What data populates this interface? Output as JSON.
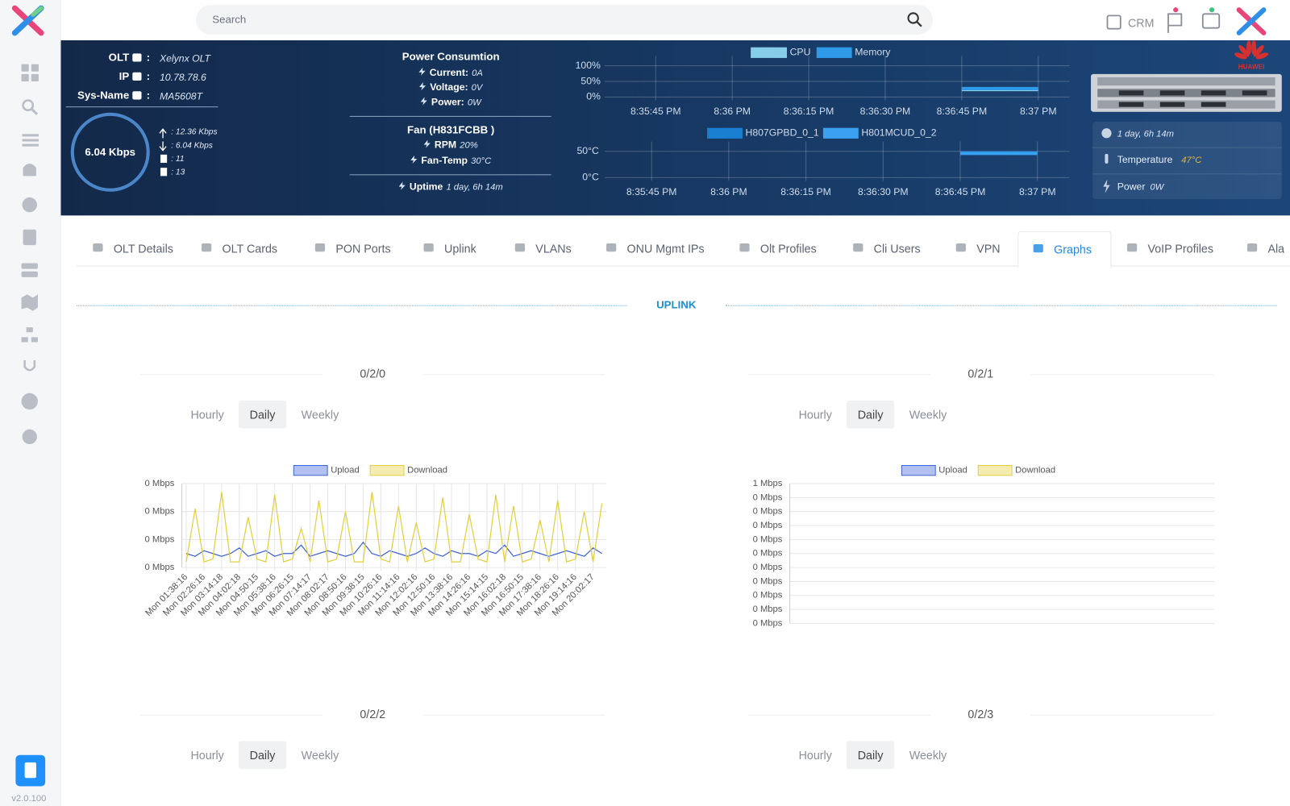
{
  "topbar": {
    "search_placeholder": "Search",
    "crm": "CRM"
  },
  "olt": {
    "rows": [
      {
        "label": "OLT",
        "value": "Xelynx OLT"
      },
      {
        "label": "IP",
        "value": "10.78.78.6"
      },
      {
        "label": "Sys-Name",
        "value": "MA5608T"
      }
    ],
    "separator": ":",
    "speed": "6.04 Kbps",
    "stats": [
      ": 12.36 Kbps",
      ": 6.04 Kbps",
      ": 11",
      ": 13"
    ]
  },
  "power": {
    "title": "Power Consumtion",
    "rows": [
      {
        "label": "Current:",
        "value": "0A"
      },
      {
        "label": "Voltage:",
        "value": "0V"
      },
      {
        "label": "Power:",
        "value": "0W"
      }
    ]
  },
  "fan": {
    "title": "Fan (H831FCBB )",
    "rows": [
      {
        "label": "RPM",
        "value": "20%"
      },
      {
        "label": "Fan-Temp",
        "value": "30°C"
      }
    ]
  },
  "uptime": {
    "label": "Uptime",
    "value": "1 day, 6h 14m"
  },
  "device": {
    "brand": "HUAWEI",
    "uptime": "1 day, 6h 14m",
    "temperature_label": "Temperature",
    "temperature": "47°C",
    "power_label": "Power",
    "power": "0W"
  },
  "chart_data": [
    {
      "type": "line",
      "categories": [
        "8:35:45 PM",
        "8:36 PM",
        "8:36:15 PM",
        "8:36:30 PM",
        "8:36:45 PM",
        "8:37 PM"
      ],
      "series": [
        {
          "name": "CPU",
          "color": "#86cdea",
          "values": [
            null,
            null,
            null,
            null,
            24,
            24
          ]
        },
        {
          "name": "Memory",
          "color": "#2f9be8",
          "values": [
            null,
            null,
            null,
            null,
            27,
            27
          ]
        }
      ],
      "ylim": [
        0,
        100
      ],
      "yticks": [
        {
          "value": 0,
          "label": "0%"
        },
        {
          "value": 50,
          "label": "50%"
        },
        {
          "value": 100,
          "label": "100%"
        }
      ],
      "grid": true
    },
    {
      "type": "line",
      "categories": [
        "8:35:45 PM",
        "8:36 PM",
        "8:36:15 PM",
        "8:36:30 PM",
        "8:36:45 PM",
        "8:37 PM"
      ],
      "series": [
        {
          "name": "H807GPBD_0_1",
          "color": "#1a7fd0",
          "values": [
            null,
            null,
            null,
            null,
            47,
            47
          ]
        },
        {
          "name": "H801MCUD_0_2",
          "color": "#3aa0f0",
          "values": [
            null,
            null,
            null,
            null,
            46,
            46
          ]
        }
      ],
      "ylim": [
        0,
        50
      ],
      "yticks": [
        {
          "value": 0,
          "label": "0°C"
        },
        {
          "value": 50,
          "label": "50°C"
        }
      ],
      "grid": true
    },
    {
      "type": "line",
      "categories": [
        "Mon 01:38:16",
        null,
        "Mon 02:26:16",
        null,
        "Mon 03:14:18",
        null,
        "Mon 04:02:18",
        null,
        "Mon 04:50:15",
        null,
        "Mon 05:38:16",
        null,
        "Mon 06:26:15",
        null,
        "Mon 07:14:17",
        null,
        "Mon 08:02:17",
        null,
        "Mon 08:50:16",
        null,
        "Mon 09:38:15",
        null,
        "Mon 10:26:16",
        null,
        "Mon 11:14:16",
        null,
        "Mon 12:02:16",
        null,
        "Mon 12:50:16",
        null,
        "Mon 13:38:16",
        null,
        "Mon 14:26:16",
        null,
        "Mon 15:14:15",
        null,
        "Mon 16:02:18",
        null,
        "Mon 16:50:15",
        null,
        "Mon 17:38:16",
        null,
        "Mon 18:26:16",
        null,
        "Mon 19:14:16",
        null,
        "Mon 20:02:17",
        null
      ],
      "series": [
        {
          "name": "Upload",
          "color": "#3f63d6",
          "values": [
            0.05,
            0.04,
            0.06,
            0.05,
            0.04,
            0.05,
            0.07,
            0.04,
            0.05,
            0.06,
            0.04,
            0.05,
            0.05,
            0.08,
            0.04,
            0.05,
            0.06,
            0.05,
            0.04,
            0.05,
            0.09,
            0.05,
            0.04,
            0.06,
            0.05,
            0.04,
            0.05,
            0.07,
            0.05,
            0.04,
            0.06,
            0.05,
            0.05,
            0.04,
            0.06,
            0.05,
            0.08,
            0.04,
            0.05,
            0.06,
            0.05,
            0.04,
            0.05,
            0.06,
            0.05,
            0.04,
            0.07,
            0.05
          ]
        },
        {
          "name": "Download",
          "color": "#e3cf3c",
          "values": [
            0.02,
            0.21,
            0.02,
            0.03,
            0.27,
            0.02,
            0.02,
            0.18,
            0.03,
            0.02,
            0.26,
            0.02,
            0.03,
            0.14,
            0.02,
            0.24,
            0.02,
            0.03,
            0.2,
            0.02,
            0.02,
            0.27,
            0.03,
            0.02,
            0.22,
            0.02,
            0.16,
            0.02,
            0.03,
            0.25,
            0.02,
            0.02,
            0.19,
            0.03,
            0.02,
            0.26,
            0.02,
            0.22,
            0.02,
            0.03,
            0.17,
            0.02,
            0.24,
            0.02,
            0.03,
            0.2,
            0.02,
            0.23
          ]
        }
      ],
      "ylim": [
        0,
        0.3
      ],
      "yticks": [
        {
          "value": 0,
          "label": "0 Mbps"
        },
        {
          "value": 0.1,
          "label": "0 Mbps"
        },
        {
          "value": 0.2,
          "label": "0 Mbps"
        },
        {
          "value": 0.3,
          "label": "0 Mbps"
        }
      ],
      "grid": true
    },
    {
      "type": "line",
      "categories": [],
      "series": [
        {
          "name": "Upload",
          "color": "#3f63d6",
          "values": []
        },
        {
          "name": "Download",
          "color": "#e3cf3c",
          "values": []
        }
      ],
      "ylim": [
        0,
        1
      ],
      "yticks": [
        {
          "value": 0,
          "label": "0 Mbps"
        },
        {
          "value": 0.1,
          "label": "0 Mbps"
        },
        {
          "value": 0.2,
          "label": "0 Mbps"
        },
        {
          "value": 0.3,
          "label": "0 Mbps"
        },
        {
          "value": 0.4,
          "label": "0 Mbps"
        },
        {
          "value": 0.5,
          "label": "0 Mbps"
        },
        {
          "value": 0.6,
          "label": "0 Mbps"
        },
        {
          "value": 0.7,
          "label": "0 Mbps"
        },
        {
          "value": 0.8,
          "label": "0 Mbps"
        },
        {
          "value": 0.9,
          "label": "0 Mbps"
        },
        {
          "value": 1,
          "label": "1 Mbps"
        }
      ],
      "grid": true
    }
  ],
  "tabs": [
    "OLT Details",
    "OLT Cards",
    "PON Ports",
    "Uplink",
    "VLANs",
    "ONU Mgmt IPs",
    "Olt Profiles",
    "Cli Users",
    "VPN",
    "Graphs",
    "VoIP Profiles",
    "Ala"
  ],
  "active_tab": 9,
  "section_title": "UPLINK",
  "range_buttons": [
    "Hourly",
    "Daily",
    "Weekly"
  ],
  "active_range": 1,
  "panels": [
    {
      "title": "0/2/0"
    },
    {
      "title": "0/2/1"
    },
    {
      "title": "0/2/2"
    },
    {
      "title": "0/2/3"
    }
  ],
  "version": "v2.0.100"
}
